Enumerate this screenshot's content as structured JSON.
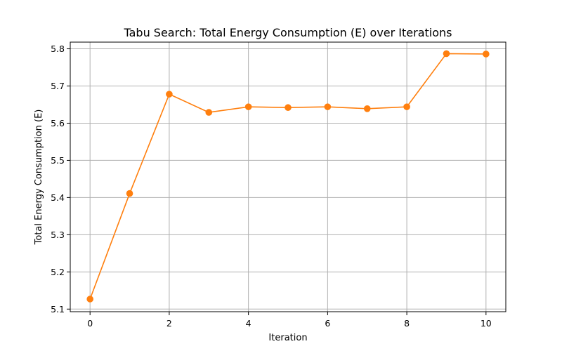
{
  "chart_data": {
    "type": "line",
    "title": "Tabu Search: Total Energy Consumption (E) over Iterations",
    "xlabel": "Iteration",
    "ylabel": "Total Energy Consumption (E)",
    "x": [
      0,
      1,
      2,
      3,
      4,
      5,
      6,
      7,
      8,
      9,
      10
    ],
    "series": [
      {
        "values": [
          5.127,
          5.411,
          5.678,
          5.629,
          5.644,
          5.642,
          5.644,
          5.639,
          5.644,
          5.787,
          5.786
        ],
        "color": "#ff7f0e",
        "marker": "circle"
      }
    ],
    "xlim": [
      -0.5,
      10.5
    ],
    "ylim": [
      5.1,
      5.8
    ],
    "xticks": [
      0,
      2,
      4,
      6,
      8,
      10
    ],
    "xtick_labels": [
      "0",
      "2",
      "4",
      "6",
      "8",
      "10"
    ],
    "yticks": [
      5.1,
      5.2,
      5.3,
      5.4,
      5.5,
      5.6,
      5.7,
      5.8
    ],
    "ytick_labels": [
      "5.1",
      "5.2",
      "5.3",
      "5.4",
      "5.5",
      "5.6",
      "5.7",
      "5.8"
    ],
    "grid": true,
    "legend": "none"
  }
}
